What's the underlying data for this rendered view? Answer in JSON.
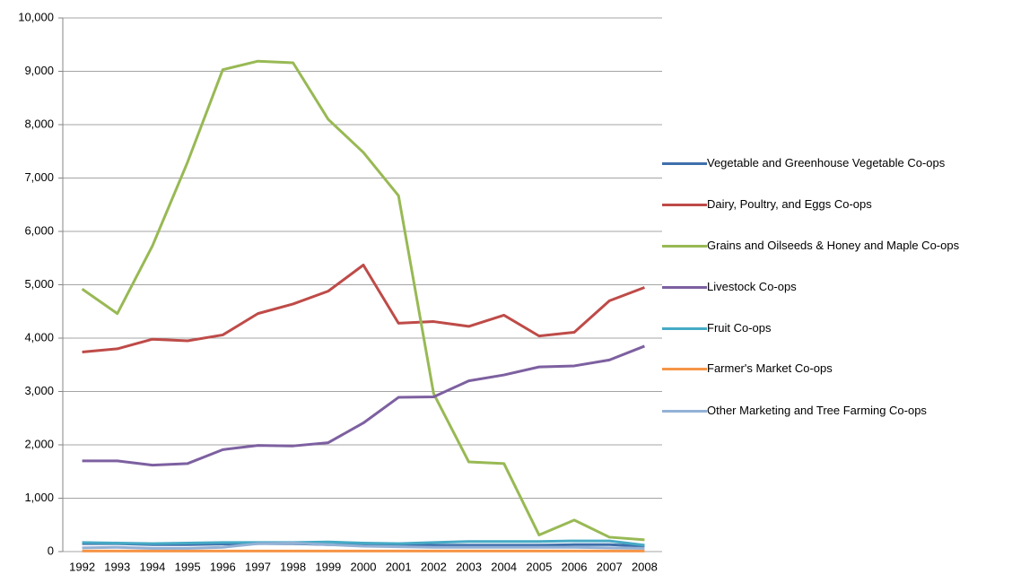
{
  "chart_data": {
    "type": "line",
    "categories": [
      "1992",
      "1993",
      "1994",
      "1995",
      "1996",
      "1997",
      "1998",
      "1999",
      "2000",
      "2001",
      "2002",
      "2003",
      "2004",
      "2005",
      "2006",
      "2007",
      "2008"
    ],
    "series": [
      {
        "name": "Vegetable and Greenhouse Vegetable Co-ops",
        "color": "#3f6fab",
        "values": [
          150,
          150,
          130,
          130,
          140,
          150,
          150,
          130,
          120,
          110,
          120,
          120,
          120,
          120,
          130,
          130,
          100
        ]
      },
      {
        "name": "Dairy, Poultry, and Eggs Co-ops",
        "color": "#be4b48",
        "values": [
          3740,
          3800,
          3980,
          3950,
          4060,
          4460,
          4640,
          4880,
          5370,
          4280,
          4310,
          4220,
          4430,
          4040,
          4110,
          4700,
          4950
        ]
      },
      {
        "name": "Grains and Oilseeds & Honey and Maple Co-ops",
        "color": "#98b954",
        "values": [
          4920,
          4460,
          5730,
          7300,
          9030,
          9190,
          9160,
          8100,
          7480,
          6670,
          2960,
          1680,
          1650,
          310,
          590,
          270,
          220
        ]
      },
      {
        "name": "Livestock Co-ops",
        "color": "#7d60a0",
        "values": [
          1700,
          1700,
          1620,
          1650,
          1910,
          1990,
          1980,
          2040,
          2410,
          2890,
          2900,
          3200,
          3310,
          3460,
          3480,
          3590,
          3850
        ]
      },
      {
        "name": "Fruit Co-ops",
        "color": "#46aac5",
        "values": [
          170,
          160,
          150,
          160,
          170,
          170,
          170,
          180,
          160,
          150,
          170,
          190,
          190,
          190,
          200,
          200,
          120
        ]
      },
      {
        "name": "Farmer's Market Co-ops",
        "color": "#f69546",
        "values": [
          10,
          10,
          10,
          10,
          10,
          10,
          10,
          10,
          10,
          10,
          10,
          10,
          10,
          10,
          10,
          10,
          10
        ]
      },
      {
        "name": "Other Marketing and Tree Farming Co-ops",
        "color": "#93b1d6",
        "values": [
          70,
          80,
          60,
          60,
          80,
          150,
          160,
          130,
          100,
          90,
          80,
          80,
          80,
          80,
          80,
          70,
          60
        ]
      }
    ],
    "ylim": [
      0,
      10000
    ],
    "yticks": [
      0,
      {
        "value": 1000,
        "label": "1,000"
      },
      {
        "value": 2000,
        "label": "2,000"
      },
      {
        "value": 3000,
        "label": "3,000"
      },
      {
        "value": 4000,
        "label": "4,000"
      },
      {
        "value": 5000,
        "label": "5,000"
      },
      {
        "value": 6000,
        "label": "6,000"
      },
      {
        "value": 7000,
        "label": "7,000"
      },
      {
        "value": 8000,
        "label": "8,000"
      },
      {
        "value": 9000,
        "label": "9,000"
      },
      {
        "value": 10000,
        "label": "10,000"
      }
    ],
    "grid": true,
    "legend": "right"
  }
}
